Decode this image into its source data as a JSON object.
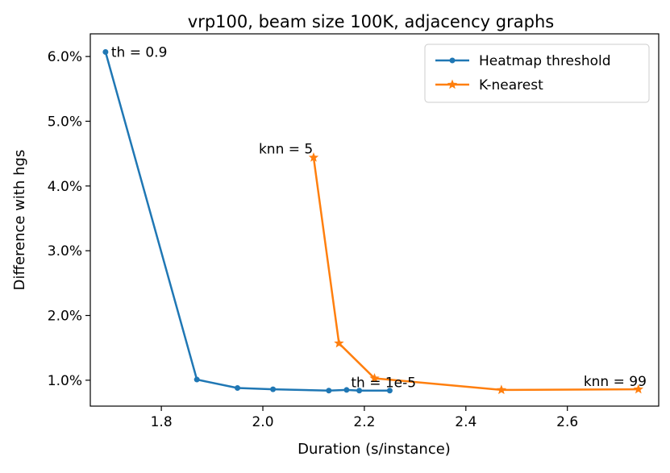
{
  "chart_data": {
    "type": "line",
    "title": "vrp100, beam size 100K, adjacency graphs",
    "xlabel": "Duration (s/instance)",
    "ylabel": "Difference with hgs",
    "xlim": [
      1.66,
      2.78
    ],
    "ylim": [
      0.6,
      6.35
    ],
    "xticks": [
      1.8,
      2.0,
      2.2,
      2.4,
      2.6
    ],
    "xtick_labels": [
      "1.8",
      "2.0",
      "2.2",
      "2.4",
      "2.6"
    ],
    "yticks": [
      1.0,
      2.0,
      3.0,
      4.0,
      5.0,
      6.0
    ],
    "ytick_labels": [
      "1.0%",
      "2.0%",
      "3.0%",
      "4.0%",
      "5.0%",
      "6.0%"
    ],
    "legend_position": "top-right",
    "series": [
      {
        "name": "Heatmap threshold",
        "color": "#1f77b4",
        "marker": "dot",
        "x": [
          1.69,
          1.87,
          1.95,
          2.02,
          2.13,
          2.165,
          2.19,
          2.25
        ],
        "y": [
          6.07,
          1.01,
          0.88,
          0.86,
          0.84,
          0.85,
          0.84,
          0.84
        ]
      },
      {
        "name": "K-nearest",
        "color": "#ff7f0e",
        "marker": "star",
        "x": [
          2.1,
          2.15,
          2.22,
          2.47,
          2.74
        ],
        "y": [
          4.44,
          1.57,
          1.03,
          0.85,
          0.86
        ]
      }
    ],
    "annotations": [
      {
        "text": "th = 0.9",
        "x": 1.69,
        "y": 6.07,
        "dx": 7,
        "dy": 0
      },
      {
        "text": "th = 1e-5",
        "x": 2.25,
        "y": 0.84,
        "dx": -48,
        "dy": -10
      },
      {
        "text": "knn = 5",
        "x": 2.1,
        "y": 4.44,
        "dx": -68,
        "dy": -11
      },
      {
        "text": "knn = 99",
        "x": 2.74,
        "y": 0.86,
        "dx": -68,
        "dy": -10
      }
    ]
  }
}
